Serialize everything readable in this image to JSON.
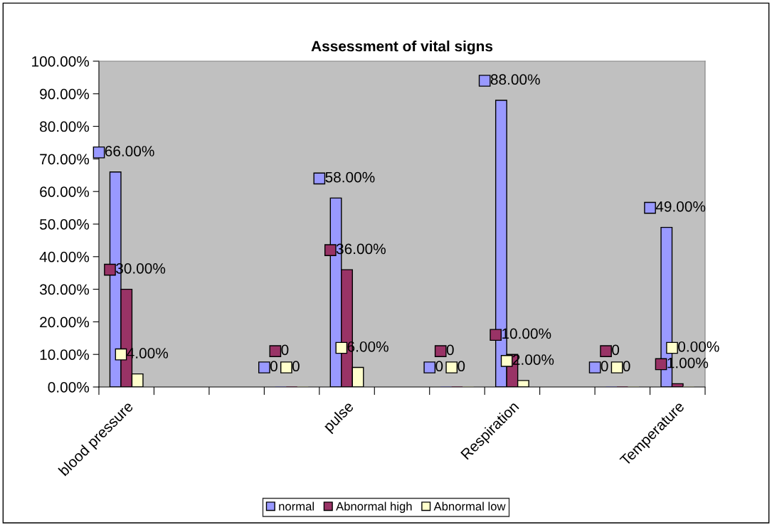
{
  "chart_data": {
    "type": "bar",
    "title": "Assessment of vital signs",
    "categories": [
      "blood pressure",
      null,
      null,
      null,
      "pulse",
      null,
      null,
      "Respiration",
      null,
      null,
      "Temperature"
    ],
    "series": [
      {
        "name": "normal",
        "color": "#9999ff",
        "values": [
          66,
          null,
          null,
          0,
          58,
          null,
          0,
          88,
          null,
          0,
          49
        ],
        "value_labels": [
          "66.00%",
          null,
          null,
          "0",
          "58.00%",
          null,
          "0",
          "88.00%",
          null,
          "0",
          "49.00%"
        ]
      },
      {
        "name": "Abnormal high",
        "color": "#993366",
        "values": [
          30,
          null,
          null,
          0,
          36,
          null,
          0,
          10,
          null,
          0,
          1
        ],
        "value_labels": [
          "30.00%",
          null,
          null,
          "0",
          "36.00%",
          null,
          "0",
          "10.00%",
          null,
          "0",
          "1.00%"
        ]
      },
      {
        "name": "Abnormal low",
        "color": "#ffffcc",
        "values": [
          4,
          null,
          null,
          0,
          6,
          null,
          0,
          2,
          null,
          0,
          0
        ],
        "value_labels": [
          "4.00%",
          null,
          null,
          "0",
          "6.00%",
          null,
          "0",
          "2.00%",
          null,
          "0",
          "0.00%"
        ]
      }
    ],
    "ylim": [
      0,
      100
    ],
    "yticks": [
      {
        "value": 0,
        "label": "0.00%"
      },
      {
        "value": 10,
        "label": "10.00%"
      },
      {
        "value": 20,
        "label": "20.00%"
      },
      {
        "value": 30,
        "label": "30.00%"
      },
      {
        "value": 40,
        "label": "40.00%"
      },
      {
        "value": 50,
        "label": "50.00%"
      },
      {
        "value": 60,
        "label": "60.00%"
      },
      {
        "value": 70,
        "label": "70.00%"
      },
      {
        "value": 80,
        "label": "80.00%"
      },
      {
        "value": 90,
        "label": "90.00%"
      },
      {
        "value": 100,
        "label": "100.00%"
      }
    ],
    "grid": false,
    "legend": "bottom"
  }
}
